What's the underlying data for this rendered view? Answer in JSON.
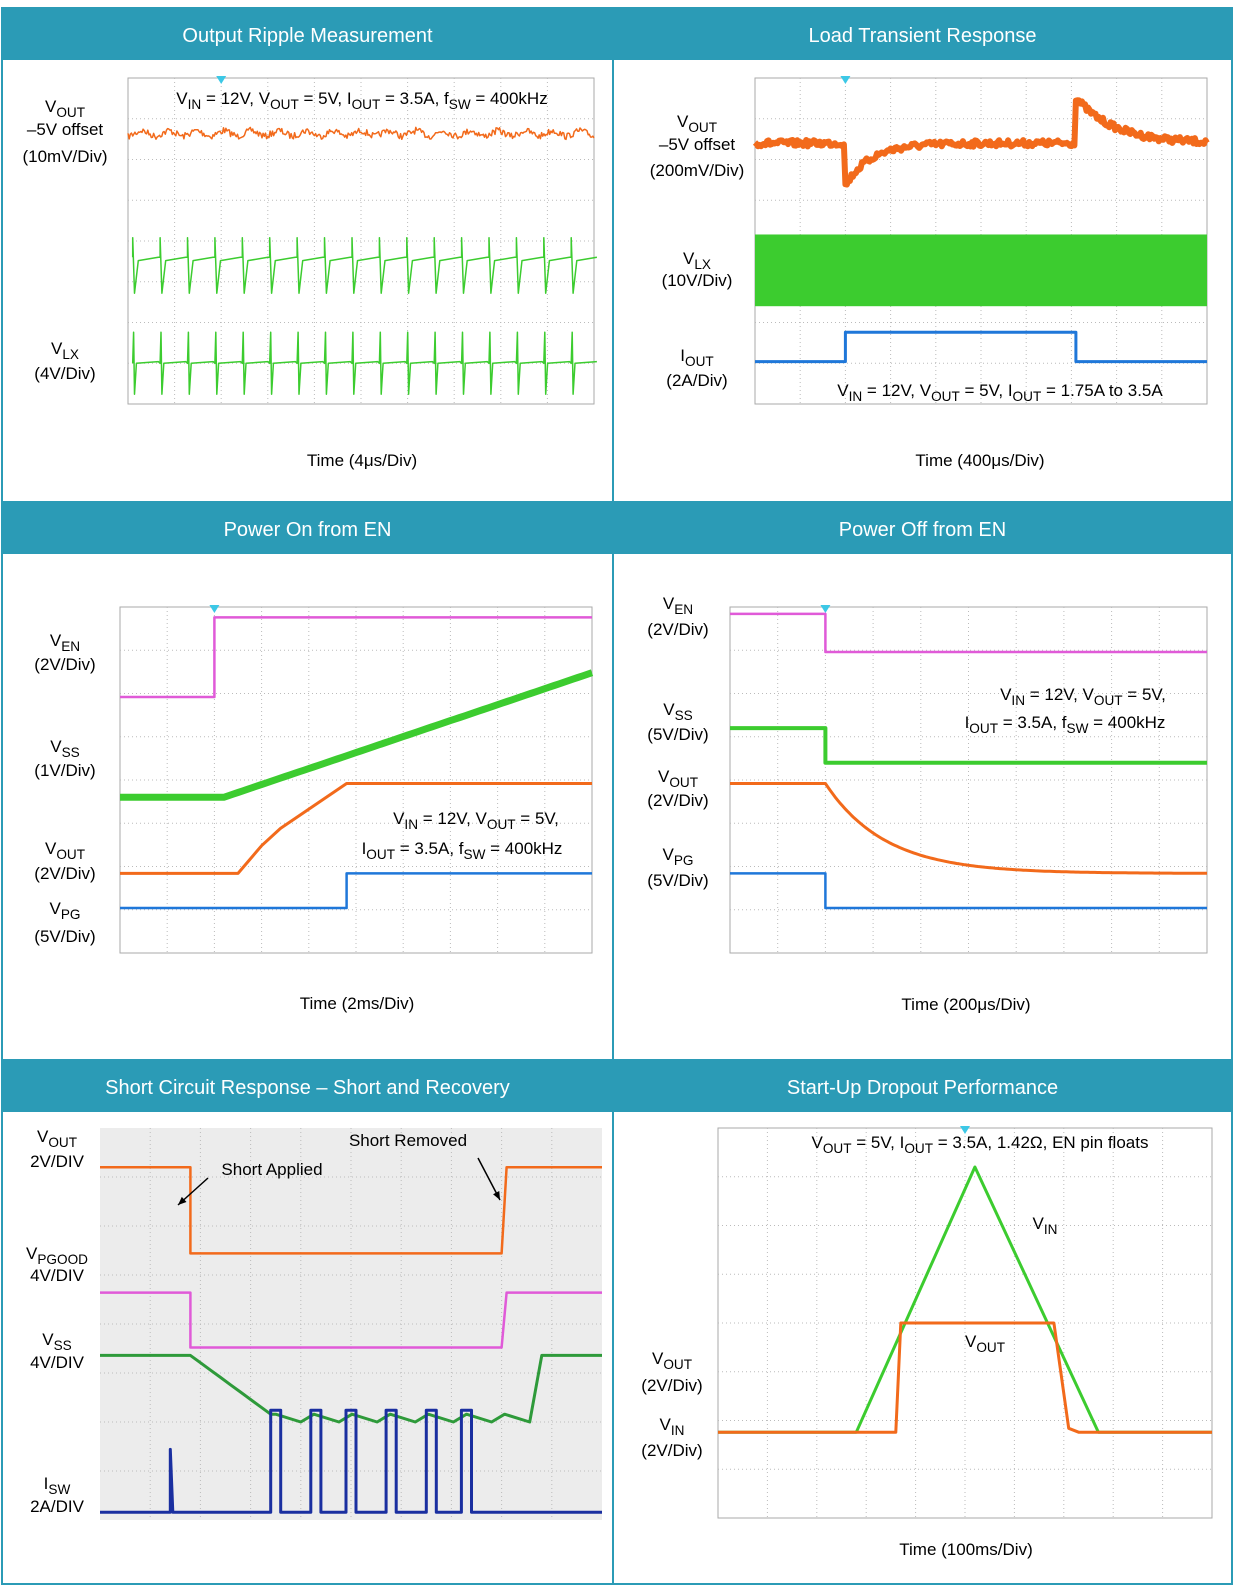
{
  "panels": [
    {
      "title": "Output Ripple Measurement",
      "texts": [
        [
          {
            "text": "V"
          },
          {
            "sub": "OUT"
          }
        ],
        [
          {
            "text": "–5V offset"
          }
        ],
        [
          {
            "text": "(10mV/Div)"
          }
        ],
        [
          {
            "text": "V"
          },
          {
            "sub": "LX"
          }
        ],
        [
          {
            "text": "(4V/Div)"
          }
        ],
        [
          {
            "text": "V"
          },
          {
            "sub": "IN"
          },
          {
            "text": " = 12V, V"
          },
          {
            "sub": "OUT"
          },
          {
            "text": " = 5V, I"
          },
          {
            "sub": "OUT"
          },
          {
            "text": " = 3.5A, f"
          },
          {
            "sub": "SW"
          },
          {
            "text": " = 400kHz"
          }
        ]
      ],
      "x_label": "Time (4μs/Div)"
    },
    {
      "title": "Load Transient Response",
      "texts": [
        [
          {
            "text": "V"
          },
          {
            "sub": "OUT"
          }
        ],
        [
          {
            "text": "–5V offset"
          }
        ],
        [
          {
            "text": "(200mV/Div)"
          }
        ],
        [
          {
            "text": "V"
          },
          {
            "sub": "LX"
          }
        ],
        [
          {
            "text": "(10V/Div)"
          }
        ],
        [
          {
            "text": "I"
          },
          {
            "sub": "OUT"
          }
        ],
        [
          {
            "text": "(2A/Div)"
          }
        ],
        [
          {
            "text": "V"
          },
          {
            "sub": "IN"
          },
          {
            "text": " = 12V, V"
          },
          {
            "sub": "OUT"
          },
          {
            "text": " = 5V, I"
          },
          {
            "sub": "OUT"
          },
          {
            "text": " = 1.75A to 3.5A"
          }
        ]
      ],
      "x_label": "Time (400μs/Div)"
    },
    {
      "title": "Power On from EN",
      "texts": [
        [
          {
            "text": "V"
          },
          {
            "sub": "EN"
          }
        ],
        [
          {
            "text": "(2V/Div)"
          }
        ],
        [
          {
            "text": "V"
          },
          {
            "sub": "SS"
          }
        ],
        [
          {
            "text": "(1V/Div)"
          }
        ],
        [
          {
            "text": "V"
          },
          {
            "sub": "OUT"
          }
        ],
        [
          {
            "text": "(2V/Div)"
          }
        ],
        [
          {
            "text": "V"
          },
          {
            "sub": "PG"
          }
        ],
        [
          {
            "text": "(5V/Div)"
          }
        ],
        [
          {
            "text": "V"
          },
          {
            "sub": "IN"
          },
          {
            "text": " = 12V, V"
          },
          {
            "sub": "OUT"
          },
          {
            "text": " = 5V,"
          }
        ],
        [
          {
            "text": "I"
          },
          {
            "sub": "OUT"
          },
          {
            "text": " = 3.5A, f"
          },
          {
            "sub": "SW"
          },
          {
            "text": " = 400kHz"
          }
        ]
      ],
      "x_label": "Time (2ms/Div)"
    },
    {
      "title": "Power Off from EN",
      "texts": [
        [
          {
            "text": "V"
          },
          {
            "sub": "EN"
          }
        ],
        [
          {
            "text": "(2V/Div)"
          }
        ],
        [
          {
            "text": "V"
          },
          {
            "sub": "SS"
          }
        ],
        [
          {
            "text": "(5V/Div)"
          }
        ],
        [
          {
            "text": "V"
          },
          {
            "sub": "OUT"
          }
        ],
        [
          {
            "text": "(2V/Div)"
          }
        ],
        [
          {
            "text": "V"
          },
          {
            "sub": "PG"
          }
        ],
        [
          {
            "text": "(5V/Div)"
          }
        ],
        [
          {
            "text": "V"
          },
          {
            "sub": "IN"
          },
          {
            "text": " = 12V, V"
          },
          {
            "sub": "OUT"
          },
          {
            "text": " = 5V,"
          }
        ],
        [
          {
            "text": "I"
          },
          {
            "sub": "OUT"
          },
          {
            "text": " = 3.5A, f"
          },
          {
            "sub": "SW"
          },
          {
            "text": " = 400kHz"
          }
        ]
      ],
      "x_label": "Time (200μs/Div)"
    },
    {
      "title": "Short Circuit Response – Short and Recovery",
      "texts": [
        [
          {
            "text": "V"
          },
          {
            "sub": "OUT"
          }
        ],
        [
          {
            "text": "2V/DIV"
          }
        ],
        [
          {
            "text": "V"
          },
          {
            "sub": "PGOOD"
          }
        ],
        [
          {
            "text": "4V/DIV"
          }
        ],
        [
          {
            "text": "V"
          },
          {
            "sub": "SS"
          }
        ],
        [
          {
            "text": "4V/DIV"
          }
        ],
        [
          {
            "text": "I"
          },
          {
            "sub": "SW"
          }
        ],
        [
          {
            "text": "2A/DIV"
          }
        ],
        [
          {
            "text": "Short Applied"
          }
        ],
        [
          {
            "text": "Short Removed"
          }
        ]
      ]
    },
    {
      "title": "Start-Up Dropout Performance",
      "texts": [
        [
          {
            "text": "V"
          },
          {
            "sub": "OUT"
          },
          {
            "text": " = 5V, I"
          },
          {
            "sub": "OUT"
          },
          {
            "text": " = 3.5A, 1.42Ω, EN pin floats"
          }
        ],
        [
          {
            "text": "V"
          },
          {
            "sub": "IN"
          }
        ],
        [
          {
            "text": "V"
          },
          {
            "sub": "OUT"
          }
        ],
        [
          {
            "text": "V"
          },
          {
            "sub": "OUT"
          }
        ],
        [
          {
            "text": "(2V/Div)"
          }
        ],
        [
          {
            "text": "V"
          },
          {
            "sub": "IN"
          }
        ],
        [
          {
            "text": "(2V/Div)"
          }
        ]
      ],
      "x_label": "Time (100ms/Div)"
    }
  ]
}
